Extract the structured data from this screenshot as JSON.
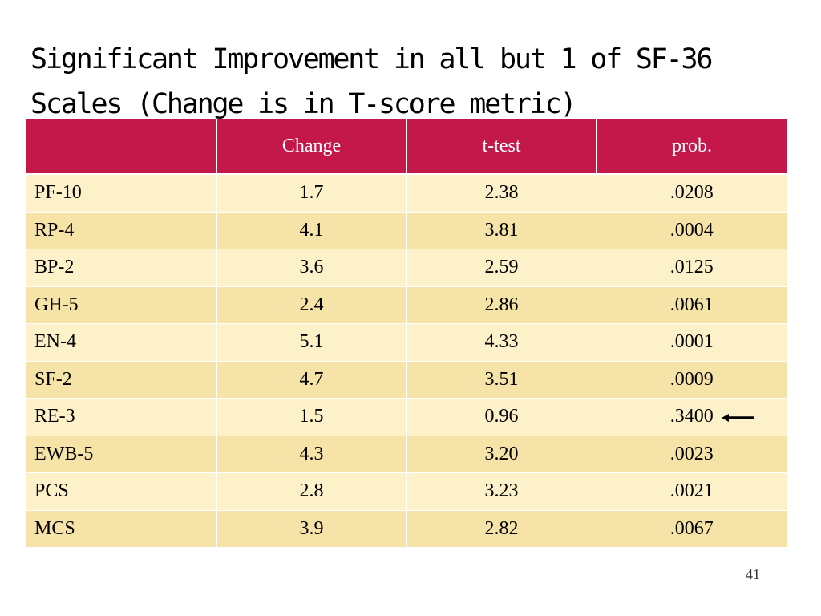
{
  "slide": {
    "title_lines": [
      "Significant Improvement in all but 1 of SF-36",
      "Scales (Change is in T-score metric)"
    ],
    "page_number": "41"
  },
  "table": {
    "headers": [
      "",
      "Change",
      "t-test",
      "prob."
    ],
    "rows": [
      {
        "scale": "PF-10",
        "change": "1.7",
        "ttest": "2.38",
        "prob": ".0208",
        "highlighted": false
      },
      {
        "scale": "RP-4",
        "change": "4.1",
        "ttest": "3.81",
        "prob": ".0004",
        "highlighted": false
      },
      {
        "scale": "BP-2",
        "change": "3.6",
        "ttest": "2.59",
        "prob": ".0125",
        "highlighted": false
      },
      {
        "scale": "GH-5",
        "change": "2.4",
        "ttest": "2.86",
        "prob": ".0061",
        "highlighted": false
      },
      {
        "scale": "EN-4",
        "change": "5.1",
        "ttest": "4.33",
        "prob": ".0001",
        "highlighted": false
      },
      {
        "scale": "SF-2",
        "change": "4.7",
        "ttest": "3.51",
        "prob": ".0009",
        "highlighted": false
      },
      {
        "scale": "RE-3",
        "change": "1.5",
        "ttest": "0.96",
        "prob": ".3400",
        "highlighted": true
      },
      {
        "scale": "EWB-5",
        "change": "4.3",
        "ttest": "3.20",
        "prob": ".0023",
        "highlighted": false
      },
      {
        "scale": "PCS",
        "change": "2.8",
        "ttest": "3.23",
        "prob": ".0021",
        "highlighted": false
      },
      {
        "scale": "MCS",
        "change": "3.9",
        "ttest": "2.82",
        "prob": ".0067",
        "highlighted": false
      }
    ],
    "arrow_icon": "left-arrow-icon"
  },
  "colors": {
    "header_bg": "#c4184a",
    "row_light": "#fdf1c9",
    "row_dark": "#f6e3a7"
  }
}
